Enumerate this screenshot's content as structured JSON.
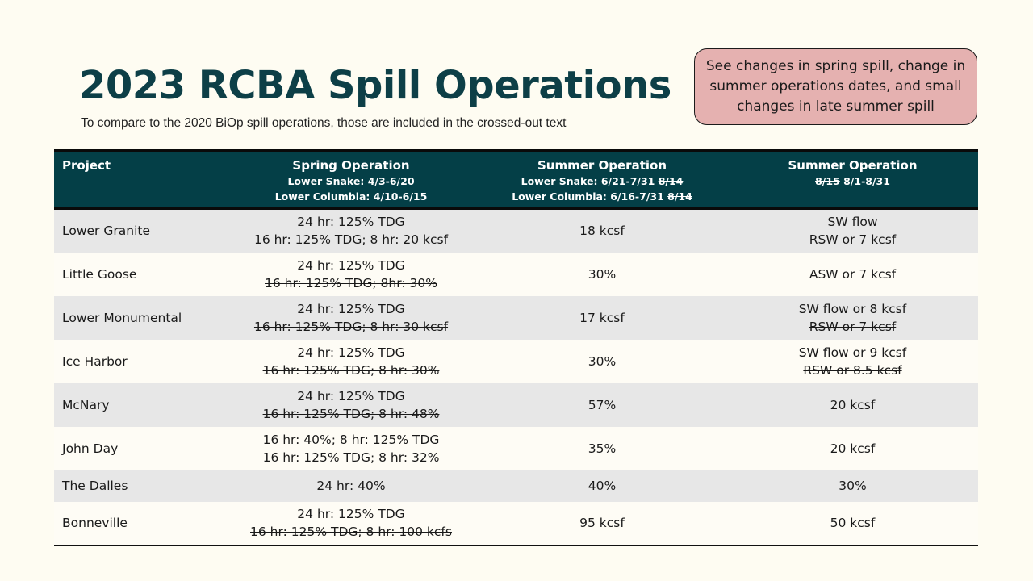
{
  "title": "2023 RCBA Spill Operations",
  "subtitle": "To compare to the 2020 BiOp spill operations, those are included in the crossed-out text",
  "callout": "See changes in spring spill, change in summer operations dates, and small changes in late summer spill",
  "colors": {
    "title": "#0d3f47",
    "header_bg": "#043f47",
    "callout_bg": "#e5b1b0",
    "row_shaded": "#e7e7e7",
    "background": "#fefcf2"
  },
  "table": {
    "headers": {
      "project": "Project",
      "spring": {
        "title": "Spring Operation",
        "line1": "Lower Snake: 4/3-6/20",
        "line2": "Lower Columbia: 4/10-6/15"
      },
      "summer": {
        "title": "Summer Operation",
        "line1": "Lower Snake: 6/21-7/31",
        "line1_struck": "8/14",
        "line2": "Lower Columbia: 6/16-7/31",
        "line2_struck": "8/14"
      },
      "late_summer": {
        "title": "Summer Operation",
        "struck": "8/15",
        "dates": "8/1-8/31"
      }
    },
    "rows": [
      {
        "project": "Lower Granite",
        "spring": "24 hr: 125% TDG",
        "spring_old": "16 hr: 125% TDG; 8 hr: 20 kcsf",
        "summer": "18 kcsf",
        "late": "SW flow",
        "late_old": "RSW or 7 kcsf"
      },
      {
        "project": "Little Goose",
        "spring": "24 hr: 125% TDG",
        "spring_old": "16 hr: 125% TDG; 8hr: 30%",
        "summer": "30%",
        "late": "ASW or 7 kcsf",
        "late_old": ""
      },
      {
        "project": "Lower Monumental",
        "spring": "24 hr: 125% TDG",
        "spring_old": "16 hr: 125% TDG; 8 hr: 30 kcsf",
        "summer": "17 kcsf",
        "late": "SW flow or 8 kcsf",
        "late_old": "RSW or 7 kcsf"
      },
      {
        "project": "Ice Harbor",
        "spring": "24 hr: 125% TDG",
        "spring_old": "16 hr: 125% TDG; 8 hr: 30%",
        "summer": "30%",
        "late": "SW flow or 9 kcsf",
        "late_old": "RSW or 8.5 kcsf"
      },
      {
        "project": "McNary",
        "spring": "24 hr: 125% TDG",
        "spring_old": "16 hr: 125% TDG; 8 hr: 48%",
        "summer": "57%",
        "late": "20 kcsf",
        "late_old": ""
      },
      {
        "project": "John Day",
        "spring": "16 hr: 40%; 8 hr: 125% TDG",
        "spring_old": "16 hr: 125% TDG; 8 hr: 32%",
        "summer": "35%",
        "late": "20 kcsf",
        "late_old": ""
      },
      {
        "project": "The Dalles",
        "spring": "24 hr: 40%",
        "spring_old": "",
        "summer": "40%",
        "late": "30%",
        "late_old": ""
      },
      {
        "project": "Bonneville",
        "spring": "24 hr: 125% TDG",
        "spring_old": "16 hr: 125% TDG; 8 hr: 100 kcfs",
        "summer": "95 kcsf",
        "late": "50 kcsf",
        "late_old": ""
      }
    ]
  }
}
